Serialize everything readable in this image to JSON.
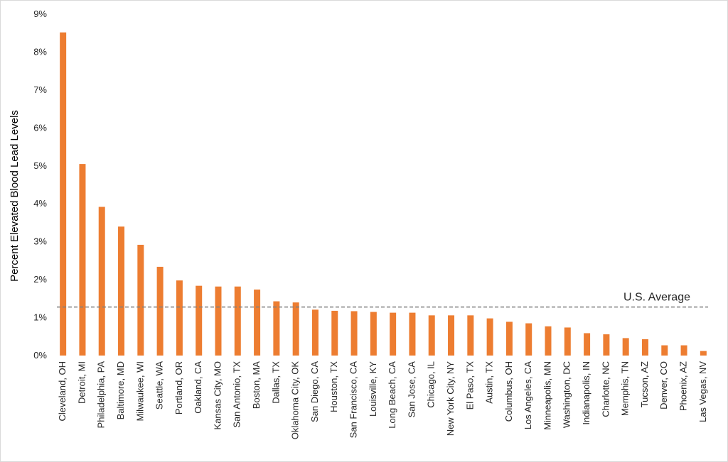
{
  "chart_data": {
    "type": "bar",
    "title": "",
    "xlabel": "",
    "ylabel": "Percent Elevated Blood Lead Levels",
    "ylim": [
      0,
      9
    ],
    "y_ticks": [
      "0%",
      "1%",
      "2%",
      "3%",
      "4%",
      "5%",
      "6%",
      "7%",
      "8%",
      "9%"
    ],
    "grid": false,
    "legend": "none",
    "bar_color": "#ED7D31",
    "categories": [
      "Cleveland, OH",
      "Detroit, MI",
      "Philadelphia, PA",
      "Baltimore, MD",
      "Milwaukee, WI",
      "Seattle, WA",
      "Portland, OR",
      "Oakland, CA",
      "Kansas City, MO",
      "San Antonio, TX",
      "Boston, MA",
      "Dallas, TX",
      "Oklahoma City, OK",
      "San Diego, CA",
      "Houston, TX",
      "San Francisco, CA",
      "Louisville, KY",
      "Long Beach, CA",
      "San Jose, CA",
      "Chicago, IL",
      "New York City, NY",
      "El Paso, TX",
      "Austin, TX",
      "Columbus, OH",
      "Los Angeles, CA",
      "Minneapolis, MN",
      "Washington, DC",
      "Indianapolis, IN",
      "Charlotte, NC",
      "Memphis, TN",
      "Tucson, AZ",
      "Denver, CO",
      "Phoenix, AZ",
      "Las Vegas, NV"
    ],
    "values": [
      8.52,
      5.05,
      3.92,
      3.4,
      2.92,
      2.34,
      1.98,
      1.84,
      1.82,
      1.82,
      1.74,
      1.43,
      1.4,
      1.21,
      1.18,
      1.17,
      1.15,
      1.13,
      1.13,
      1.06,
      1.06,
      1.06,
      0.98,
      0.89,
      0.85,
      0.77,
      0.74,
      0.59,
      0.56,
      0.46,
      0.43,
      0.27,
      0.27,
      0.12
    ],
    "reference_line": {
      "label": "U.S. Average",
      "value": 1.28,
      "color": "#7f7f7f",
      "style": "dashed"
    }
  }
}
